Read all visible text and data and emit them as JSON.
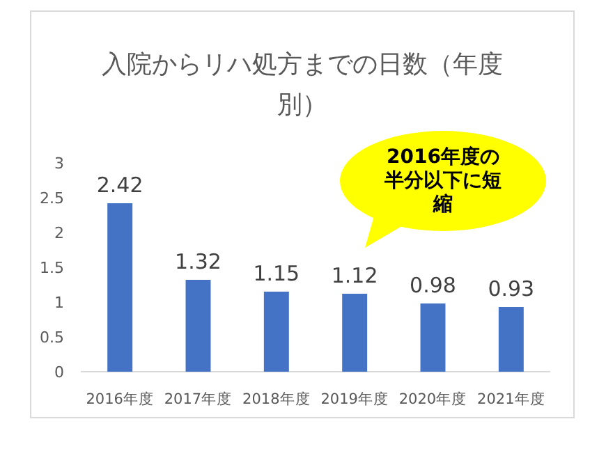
{
  "chart_data": {
    "type": "bar",
    "title": "入院からリハ処方までの日数（年度別）",
    "categories": [
      "2016年度",
      "2017年度",
      "2018年度",
      "2019年度",
      "2020年度",
      "2021年度"
    ],
    "values": [
      2.42,
      1.32,
      1.15,
      1.12,
      0.98,
      0.93
    ],
    "color": "#4472c4",
    "ylim": [
      0,
      3
    ],
    "yticks": [
      0,
      0.5,
      1,
      1.5,
      2,
      2.5,
      3
    ],
    "data_labels": true,
    "grid": false,
    "annotations": [
      "2016年度の半分以下に短縮"
    ]
  }
}
